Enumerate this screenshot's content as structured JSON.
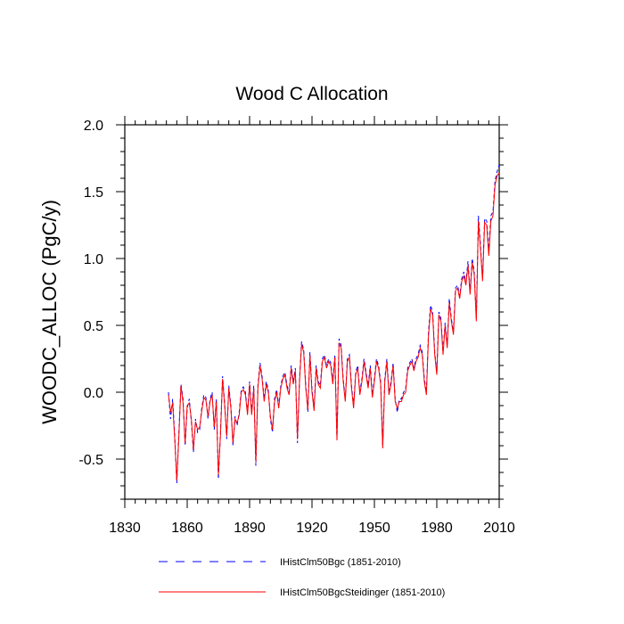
{
  "chart_data": {
    "type": "line",
    "title": "Wood C Allocation",
    "xlabel": "",
    "ylabel": "WOODC_ALLOC  (PgC/y)",
    "xlim": [
      1830,
      2010
    ],
    "ylim": [
      -0.8,
      2.0
    ],
    "xticks": [
      "1830",
      "1860",
      "1890",
      "1920",
      "1950",
      "1980",
      "2010"
    ],
    "yticks": [
      "2.0",
      "1.5",
      "1.0",
      "0.5",
      "0.0",
      "-0.5"
    ],
    "grid": false,
    "legend_position": "bottom",
    "x": [
      1851,
      1852,
      1853,
      1854,
      1855,
      1856,
      1857,
      1858,
      1859,
      1860,
      1861,
      1862,
      1863,
      1864,
      1865,
      1866,
      1867,
      1868,
      1869,
      1870,
      1871,
      1872,
      1873,
      1874,
      1875,
      1876,
      1877,
      1878,
      1879,
      1880,
      1881,
      1882,
      1883,
      1884,
      1885,
      1886,
      1887,
      1888,
      1889,
      1890,
      1891,
      1892,
      1893,
      1894,
      1895,
      1896,
      1897,
      1898,
      1899,
      1900,
      1901,
      1902,
      1903,
      1904,
      1905,
      1906,
      1907,
      1908,
      1909,
      1910,
      1911,
      1912,
      1913,
      1914,
      1915,
      1916,
      1917,
      1918,
      1919,
      1920,
      1921,
      1922,
      1923,
      1924,
      1925,
      1926,
      1927,
      1928,
      1929,
      1930,
      1931,
      1932,
      1933,
      1934,
      1935,
      1936,
      1937,
      1938,
      1939,
      1940,
      1941,
      1942,
      1943,
      1944,
      1945,
      1946,
      1947,
      1948,
      1949,
      1950,
      1951,
      1952,
      1953,
      1954,
      1955,
      1956,
      1957,
      1958,
      1959,
      1960,
      1961,
      1962,
      1963,
      1964,
      1965,
      1966,
      1967,
      1968,
      1969,
      1970,
      1971,
      1972,
      1973,
      1974,
      1975,
      1976,
      1977,
      1978,
      1979,
      1980,
      1981,
      1982,
      1983,
      1984,
      1985,
      1986,
      1987,
      1988,
      1989,
      1990,
      1991,
      1992,
      1993,
      1994,
      1995,
      1996,
      1997,
      1998,
      1999,
      2000,
      2001,
      2002,
      2003,
      2004,
      2005,
      2006,
      2007,
      2008,
      2009,
      2010
    ],
    "series": [
      {
        "name": "IHistClm50Bgc (1851-2010)",
        "color": "#0000ff",
        "dash": "dashed",
        "values": [
          0.0,
          -0.2,
          -0.05,
          -0.32,
          -0.68,
          -0.3,
          0.06,
          -0.05,
          -0.4,
          -0.12,
          -0.05,
          -0.22,
          -0.45,
          -0.2,
          -0.3,
          -0.28,
          -0.12,
          -0.02,
          -0.04,
          -0.2,
          -0.05,
          0.0,
          -0.28,
          -0.05,
          -0.65,
          -0.3,
          0.12,
          -0.08,
          -0.35,
          0.05,
          -0.1,
          -0.4,
          -0.18,
          -0.25,
          -0.15,
          0.02,
          0.04,
          0.0,
          -0.15,
          0.08,
          -0.15,
          0.05,
          -0.55,
          0.05,
          0.22,
          0.12,
          -0.05,
          0.08,
          0.02,
          -0.2,
          -0.3,
          -0.05,
          0.02,
          -0.1,
          0.05,
          0.12,
          0.15,
          0.05,
          0.0,
          0.2,
          0.08,
          0.18,
          -0.38,
          0.1,
          0.38,
          0.32,
          0.05,
          -0.15,
          0.3,
          0.02,
          -0.12,
          0.2,
          0.08,
          0.05,
          0.25,
          0.28,
          0.2,
          0.25,
          0.22,
          0.08,
          0.28,
          -0.35,
          0.4,
          0.35,
          0.1,
          -0.05,
          0.25,
          0.28,
          0.05,
          -0.1,
          0.15,
          0.2,
          0.0,
          0.1,
          0.25,
          0.15,
          0.05,
          0.2,
          -0.02,
          0.1,
          0.25,
          0.2,
          0.08,
          -0.4,
          0.1,
          0.25,
          0.0,
          0.08,
          0.22,
          -0.05,
          -0.15,
          -0.05,
          -0.05,
          0.0,
          0.02,
          0.18,
          0.22,
          0.25,
          0.18,
          0.25,
          0.28,
          0.35,
          0.3,
          0.1,
          0.0,
          0.45,
          0.65,
          0.6,
          0.3,
          0.15,
          0.6,
          0.55,
          0.3,
          0.52,
          0.35,
          0.7,
          0.55,
          0.45,
          0.78,
          0.8,
          0.72,
          0.85,
          0.9,
          0.82,
          0.98,
          0.75,
          1.0,
          0.9,
          0.55,
          1.32,
          1.1,
          0.85,
          1.3,
          1.28,
          1.05,
          1.32,
          1.35,
          1.58,
          1.65,
          1.7
        ]
      },
      {
        "name": "IHistClm50BgcSteidinger (1851-2010)",
        "color": "#ff0000",
        "dash": "solid",
        "values": [
          -0.02,
          -0.15,
          -0.08,
          -0.35,
          -0.66,
          -0.33,
          0.05,
          -0.08,
          -0.38,
          -0.1,
          -0.08,
          -0.2,
          -0.43,
          -0.22,
          -0.28,
          -0.26,
          -0.14,
          -0.04,
          -0.06,
          -0.18,
          -0.07,
          -0.02,
          -0.26,
          -0.07,
          -0.62,
          -0.32,
          0.1,
          -0.1,
          -0.33,
          0.03,
          -0.12,
          -0.38,
          -0.2,
          -0.23,
          -0.17,
          0.0,
          0.02,
          -0.02,
          -0.17,
          0.06,
          -0.17,
          0.03,
          -0.52,
          0.03,
          0.2,
          0.1,
          -0.07,
          0.06,
          0.0,
          -0.18,
          -0.28,
          -0.07,
          0.0,
          -0.12,
          0.03,
          0.1,
          0.13,
          0.03,
          -0.02,
          0.18,
          0.06,
          0.16,
          -0.35,
          0.08,
          0.36,
          0.3,
          0.03,
          -0.13,
          0.28,
          0.0,
          -0.14,
          0.18,
          0.06,
          0.03,
          0.23,
          0.26,
          0.18,
          0.23,
          0.2,
          0.06,
          0.26,
          -0.36,
          0.37,
          0.33,
          0.08,
          -0.07,
          0.23,
          0.26,
          0.03,
          -0.12,
          0.13,
          0.18,
          -0.02,
          0.08,
          0.23,
          0.13,
          0.03,
          0.18,
          -0.04,
          0.08,
          0.23,
          0.18,
          0.06,
          -0.42,
          0.08,
          0.23,
          -0.02,
          0.06,
          0.2,
          -0.07,
          -0.12,
          -0.07,
          -0.07,
          -0.02,
          0.0,
          0.16,
          0.2,
          0.23,
          0.16,
          0.23,
          0.26,
          0.33,
          0.28,
          0.08,
          -0.02,
          0.42,
          0.62,
          0.58,
          0.28,
          0.13,
          0.58,
          0.53,
          0.28,
          0.5,
          0.33,
          0.67,
          0.53,
          0.43,
          0.76,
          0.78,
          0.7,
          0.83,
          0.87,
          0.8,
          0.95,
          0.73,
          0.97,
          0.88,
          0.53,
          1.28,
          1.07,
          0.83,
          1.27,
          1.25,
          1.02,
          1.28,
          1.32,
          1.55,
          1.62,
          1.64
        ]
      }
    ]
  }
}
